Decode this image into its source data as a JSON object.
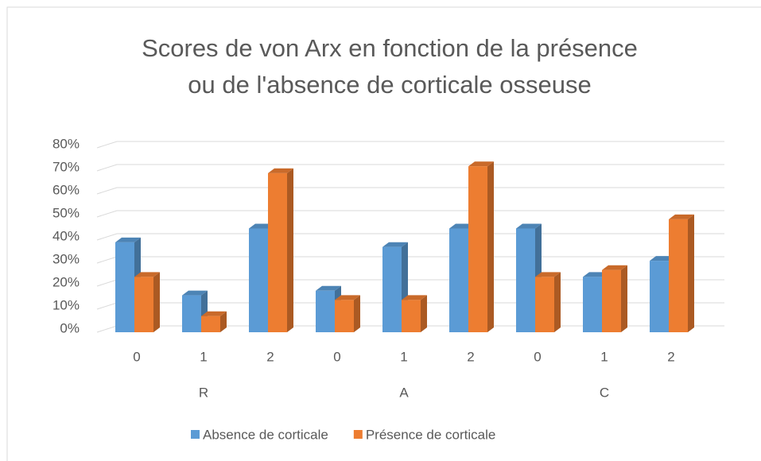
{
  "chart_data": {
    "type": "bar3d",
    "title": "Scores de von Arx en fonction de la présence ou de l'absence de corticale osseuse",
    "categories": [
      "0",
      "1",
      "2",
      "0",
      "1",
      "2",
      "0",
      "1",
      "2"
    ],
    "groups": [
      "R",
      "A",
      "C"
    ],
    "series": [
      {
        "name": "Absence de corticale",
        "color": "#5b9bd5",
        "values": [
          39,
          16,
          45,
          18,
          37,
          45,
          45,
          24,
          31
        ]
      },
      {
        "name": "Présence de corticale",
        "color": "#ed7d31",
        "values": [
          24,
          7,
          69,
          14,
          14,
          72,
          24,
          27,
          49
        ]
      }
    ],
    "ylim": [
      0,
      80
    ],
    "yticks": [
      {
        "value": 0,
        "label": "0%"
      },
      {
        "value": 10,
        "label": "10%"
      },
      {
        "value": 20,
        "label": "20%"
      },
      {
        "value": 30,
        "label": "30%"
      },
      {
        "value": 40,
        "label": "40%"
      },
      {
        "value": 50,
        "label": "50%"
      },
      {
        "value": 60,
        "label": "60%"
      },
      {
        "value": 70,
        "label": "70%"
      },
      {
        "value": 80,
        "label": "80%"
      }
    ],
    "grid": true,
    "legend": "bottom"
  }
}
